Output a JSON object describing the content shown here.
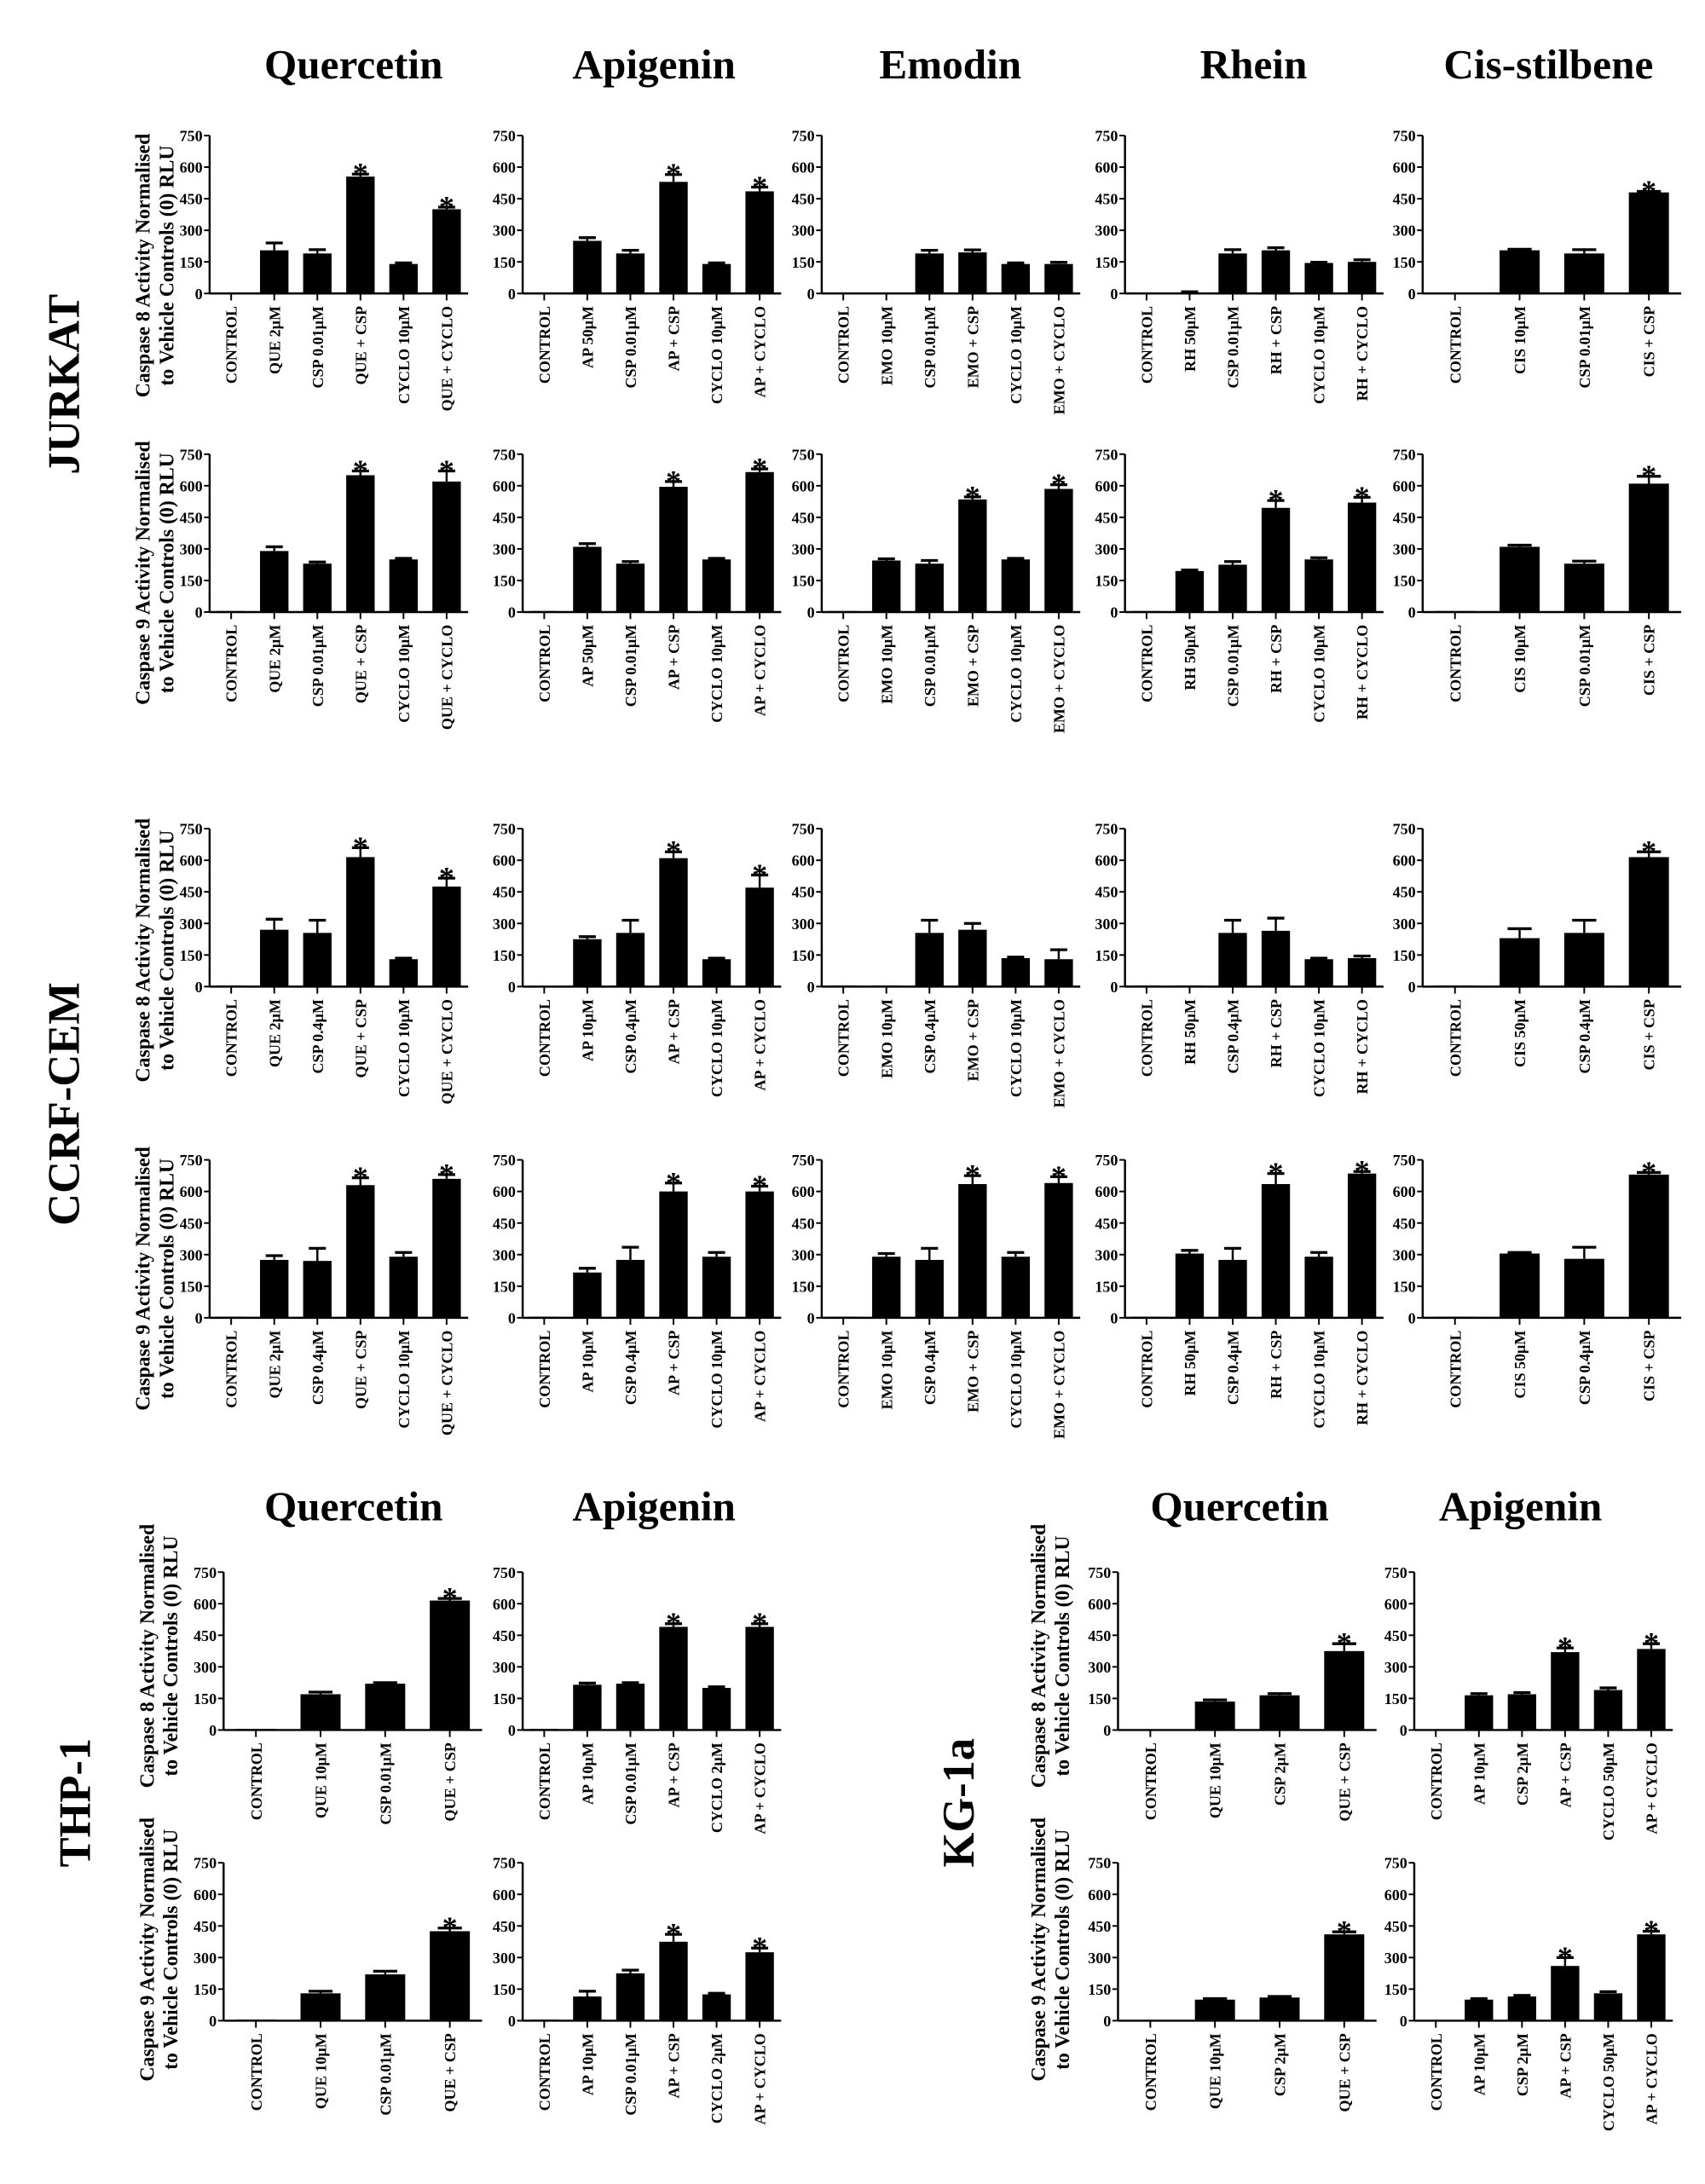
{
  "column_titles": {
    "jurkat_ccrf": [
      "Quercetin",
      "Apigenin",
      "Emodin",
      "Rhein",
      "Cis-stilbene"
    ],
    "thp1": [
      "Quercetin",
      "Apigenin"
    ],
    "kg1a": [
      "Quercetin",
      "Apigenin"
    ]
  },
  "row_labels": {
    "jurkat": "JURKAT",
    "ccrf": "CCRF-CEM",
    "thp1": "THP-1",
    "kg1a": "KG-1a"
  },
  "y_titles": {
    "c8": [
      "Caspase 8 Activity Normalised",
      "to Vehicle Controls (0) RLU"
    ],
    "c9": [
      "Caspase 9 Activity Normalised",
      "to Vehicle Controls (0) RLU"
    ]
  },
  "significance_marker": "*",
  "chart_data": {
    "type": "bar",
    "ylim": [
      0,
      750
    ],
    "yticks": [
      0,
      150,
      300,
      450,
      600,
      750
    ],
    "grid": false,
    "bar_color": "#000000",
    "panels": [
      {
        "cell": "JURKAT",
        "caspase": 8,
        "compound": "Quercetin",
        "categories": [
          "CONTROL",
          "QUE 2µM",
          "CSP 0.01µM",
          "QUE + CSP",
          "CYCLO 10µM",
          "QUE + CYCLO"
        ],
        "values": [
          0,
          205,
          190,
          555,
          140,
          400
        ],
        "errors": [
          0,
          35,
          18,
          12,
          5,
          10
        ],
        "significant": [
          3,
          5
        ]
      },
      {
        "cell": "JURKAT",
        "caspase": 8,
        "compound": "Apigenin",
        "categories": [
          "CONTROL",
          "AP 50µM",
          "CSP 0.01µM",
          "AP + CSP",
          "CYCLO 10µM",
          "AP + CYCLO"
        ],
        "values": [
          0,
          250,
          190,
          530,
          140,
          485
        ],
        "errors": [
          0,
          15,
          15,
          35,
          5,
          20
        ],
        "significant": [
          3,
          5
        ]
      },
      {
        "cell": "JURKAT",
        "caspase": 8,
        "compound": "Emodin",
        "categories": [
          "CONTROL",
          "EMO 10µM",
          "CSP 0.01µM",
          "EMO + CSP",
          "CYCLO 10µM",
          "EMO + CYCLO"
        ],
        "values": [
          0,
          0,
          190,
          195,
          140,
          140
        ],
        "errors": [
          0,
          0,
          15,
          12,
          5,
          8
        ],
        "significant": []
      },
      {
        "cell": "JURKAT",
        "caspase": 8,
        "compound": "Rhein",
        "categories": [
          "CONTROL",
          "RH 50µM",
          "CSP 0.01µM",
          "RH + CSP",
          "CYCLO 10µM",
          "RH + CYCLO"
        ],
        "values": [
          0,
          5,
          190,
          205,
          145,
          150
        ],
        "errors": [
          0,
          3,
          18,
          12,
          3,
          10
        ],
        "significant": []
      },
      {
        "cell": "JURKAT",
        "caspase": 8,
        "compound": "Cis-stilbene",
        "categories": [
          "CONTROL",
          "CIS 10µM",
          "CSP 0.01µM",
          "CIS + CSP"
        ],
        "values": [
          0,
          205,
          190,
          480
        ],
        "errors": [
          0,
          5,
          18,
          5
        ],
        "significant": [
          3
        ]
      },
      {
        "cell": "JURKAT",
        "caspase": 9,
        "compound": "Quercetin",
        "categories": [
          "CONTROL",
          "QUE 2µM",
          "CSP 0.01µM",
          "QUE + CSP",
          "CYCLO 10µM",
          "QUE + CYCLO"
        ],
        "values": [
          5,
          290,
          230,
          650,
          250,
          620
        ],
        "errors": [
          0,
          20,
          8,
          20,
          5,
          50
        ],
        "significant": [
          3,
          5
        ]
      },
      {
        "cell": "JURKAT",
        "caspase": 9,
        "compound": "Apigenin",
        "categories": [
          "CONTROL",
          "AP 50µM",
          "CSP 0.01µM",
          "AP + CSP",
          "CYCLO 10µM",
          "AP + CYCLO"
        ],
        "values": [
          5,
          310,
          230,
          595,
          250,
          665
        ],
        "errors": [
          0,
          15,
          10,
          25,
          5,
          15
        ],
        "significant": [
          3,
          5
        ]
      },
      {
        "cell": "JURKAT",
        "caspase": 9,
        "compound": "Emodin",
        "categories": [
          "CONTROL",
          "EMO 10µM",
          "CSP 0.01µM",
          "EMO + CSP",
          "CYCLO 10µM",
          "EMO + CYCLO"
        ],
        "values": [
          5,
          245,
          230,
          535,
          250,
          585
        ],
        "errors": [
          0,
          8,
          15,
          12,
          5,
          20
        ],
        "significant": [
          3,
          5
        ]
      },
      {
        "cell": "JURKAT",
        "caspase": 9,
        "compound": "Rhein",
        "categories": [
          "CONTROL",
          "RH 50µM",
          "CSP 0.01µM",
          "RH + CSP",
          "CYCLO 10µM",
          "RH + CYCLO"
        ],
        "values": [
          5,
          195,
          225,
          495,
          250,
          520
        ],
        "errors": [
          0,
          5,
          15,
          35,
          8,
          25
        ],
        "significant": [
          3,
          5
        ]
      },
      {
        "cell": "JURKAT",
        "caspase": 9,
        "compound": "Cis-stilbene",
        "categories": [
          "CONTROL",
          "CIS 10µM",
          "CSP 0.01µM",
          "CIS + CSP"
        ],
        "values": [
          5,
          310,
          230,
          610
        ],
        "errors": [
          0,
          8,
          12,
          35
        ],
        "significant": [
          3
        ]
      },
      {
        "cell": "CCRF-CEM",
        "caspase": 8,
        "compound": "Quercetin",
        "categories": [
          "CONTROL",
          "QUE 2µM",
          "CSP 0.4µM",
          "QUE + CSP",
          "CYCLO 10µM",
          "QUE + CYCLO"
        ],
        "values": [
          5,
          270,
          255,
          615,
          130,
          475
        ],
        "errors": [
          0,
          50,
          60,
          45,
          5,
          40
        ],
        "significant": [
          3,
          5
        ]
      },
      {
        "cell": "CCRF-CEM",
        "caspase": 8,
        "compound": "Apigenin",
        "categories": [
          "CONTROL",
          "AP 10µM",
          "CSP 0.4µM",
          "AP + CSP",
          "CYCLO 10µM",
          "AP + CYCLO"
        ],
        "values": [
          0,
          225,
          255,
          610,
          130,
          470
        ],
        "errors": [
          0,
          12,
          60,
          30,
          5,
          60
        ],
        "significant": [
          3,
          5
        ]
      },
      {
        "cell": "CCRF-CEM",
        "caspase": 8,
        "compound": "Emodin",
        "categories": [
          "CONTROL",
          "EMO 10µM",
          "CSP 0.4µM",
          "EMO + CSP",
          "CYCLO 10µM",
          "EMO + CYCLO"
        ],
        "values": [
          5,
          5,
          255,
          270,
          135,
          130
        ],
        "errors": [
          0,
          0,
          60,
          30,
          5,
          45
        ],
        "significant": []
      },
      {
        "cell": "CCRF-CEM",
        "caspase": 8,
        "compound": "Rhein",
        "categories": [
          "CONTROL",
          "RH 50µM",
          "CSP 0.4µM",
          "RH + CSP",
          "CYCLO 10µM",
          "RH + CYCLO"
        ],
        "values": [
          5,
          5,
          255,
          265,
          130,
          135
        ],
        "errors": [
          0,
          0,
          60,
          60,
          5,
          10
        ],
        "significant": []
      },
      {
        "cell": "CCRF-CEM",
        "caspase": 8,
        "compound": "Cis-stilbene",
        "categories": [
          "CONTROL",
          "CIS 50µM",
          "CSP 0.4µM",
          "CIS + CSP"
        ],
        "values": [
          5,
          230,
          255,
          615
        ],
        "errors": [
          0,
          45,
          60,
          25
        ],
        "significant": [
          3
        ]
      },
      {
        "cell": "CCRF-CEM",
        "caspase": 9,
        "compound": "Quercetin",
        "categories": [
          "CONTROL",
          "QUE 2µM",
          "CSP 0.4µM",
          "QUE + CSP",
          "CYCLO 10µM",
          "QUE + CYCLO"
        ],
        "values": [
          5,
          275,
          270,
          630,
          290,
          660
        ],
        "errors": [
          0,
          20,
          60,
          35,
          20,
          20
        ],
        "significant": [
          3,
          5
        ]
      },
      {
        "cell": "CCRF-CEM",
        "caspase": 9,
        "compound": "Apigenin",
        "categories": [
          "CONTROL",
          "AP 10µM",
          "CSP 0.4µM",
          "AP + CSP",
          "CYCLO 10µM",
          "AP + CYCLO"
        ],
        "values": [
          5,
          215,
          275,
          600,
          290,
          600
        ],
        "errors": [
          0,
          20,
          60,
          40,
          20,
          25
        ],
        "significant": [
          3,
          5
        ]
      },
      {
        "cell": "CCRF-CEM",
        "caspase": 9,
        "compound": "Emodin",
        "categories": [
          "CONTROL",
          "EMO 10µM",
          "CSP 0.4µM",
          "EMO + CSP",
          "CYCLO 10µM",
          "EMO + CYCLO"
        ],
        "values": [
          5,
          290,
          275,
          635,
          290,
          640
        ],
        "errors": [
          0,
          15,
          55,
          40,
          20,
          30
        ],
        "significant": [
          3,
          5
        ]
      },
      {
        "cell": "CCRF-CEM",
        "caspase": 9,
        "compound": "Rhein",
        "categories": [
          "CONTROL",
          "RH 50µM",
          "CSP 0.4µM",
          "RH + CSP",
          "CYCLO 10µM",
          "RH + CYCLO"
        ],
        "values": [
          5,
          305,
          275,
          635,
          290,
          685
        ],
        "errors": [
          0,
          15,
          55,
          50,
          20,
          10
        ],
        "significant": [
          3,
          5
        ]
      },
      {
        "cell": "CCRF-CEM",
        "caspase": 9,
        "compound": "Cis-stilbene",
        "categories": [
          "CONTROL",
          "CIS 50µM",
          "CSP 0.4µM",
          "CIS + CSP"
        ],
        "values": [
          5,
          305,
          280,
          680
        ],
        "errors": [
          0,
          5,
          55,
          10
        ],
        "significant": [
          3
        ]
      },
      {
        "cell": "THP-1",
        "caspase": 8,
        "compound": "Quercetin",
        "categories": [
          "CONTROL",
          "QUE 10µM",
          "CSP 0.01µM",
          "QUE + CSP"
        ],
        "values": [
          5,
          170,
          220,
          615
        ],
        "errors": [
          0,
          10,
          5,
          10
        ],
        "significant": [
          3
        ]
      },
      {
        "cell": "THP-1",
        "caspase": 8,
        "compound": "Apigenin",
        "categories": [
          "CONTROL",
          "AP 10µM",
          "CSP 0.01µM",
          "AP + CSP",
          "CYCLO 2µM",
          "AP + CYCLO"
        ],
        "values": [
          5,
          215,
          220,
          490,
          200,
          490
        ],
        "errors": [
          0,
          8,
          5,
          15,
          5,
          15
        ],
        "significant": [
          3,
          5
        ]
      },
      {
        "cell": "THP-1",
        "caspase": 9,
        "compound": "Quercetin",
        "categories": [
          "CONTROL",
          "QUE 10µM",
          "CSP 0.01µM",
          "QUE + CSP"
        ],
        "values": [
          5,
          130,
          220,
          425
        ],
        "errors": [
          0,
          10,
          15,
          15
        ],
        "significant": [
          3
        ]
      },
      {
        "cell": "THP-1",
        "caspase": 9,
        "compound": "Apigenin",
        "categories": [
          "CONTROL",
          "AP 10µM",
          "CSP 0.01µM",
          "AP + CSP",
          "CYCLO 2µM",
          "AP + CYCLO"
        ],
        "values": [
          5,
          115,
          225,
          375,
          125,
          325
        ],
        "errors": [
          0,
          25,
          15,
          35,
          5,
          20
        ],
        "significant": [
          3,
          5
        ]
      },
      {
        "cell": "KG-1a",
        "caspase": 8,
        "compound": "Quercetin",
        "categories": [
          "CONTROL",
          "QUE 10µM",
          "CSP 2µM",
          "QUE + CSP"
        ],
        "values": [
          0,
          135,
          165,
          375
        ],
        "errors": [
          0,
          8,
          8,
          35
        ],
        "significant": [
          3
        ]
      },
      {
        "cell": "KG-1a",
        "caspase": 8,
        "compound": "Apigenin",
        "categories": [
          "CONTROL",
          "AP 10µM",
          "CSP 2µM",
          "AP + CSP",
          "CYCLO 50µM",
          "AP + CYCLO"
        ],
        "values": [
          0,
          165,
          170,
          370,
          190,
          385
        ],
        "errors": [
          0,
          8,
          8,
          20,
          10,
          25
        ],
        "significant": [
          3,
          5
        ]
      },
      {
        "cell": "KG-1a",
        "caspase": 9,
        "compound": "Quercetin",
        "categories": [
          "CONTROL",
          "QUE 10µM",
          "CSP 2µM",
          "QUE + CSP"
        ],
        "values": [
          0,
          100,
          110,
          410
        ],
        "errors": [
          0,
          5,
          5,
          12
        ],
        "significant": [
          3
        ]
      },
      {
        "cell": "KG-1a",
        "caspase": 9,
        "compound": "Apigenin",
        "categories": [
          "CONTROL",
          "AP 10µM",
          "CSP 2µM",
          "AP + CSP",
          "CYCLO 50µM",
          "AP + CYCLO"
        ],
        "values": [
          0,
          100,
          115,
          260,
          130,
          410
        ],
        "errors": [
          0,
          5,
          5,
          40,
          8,
          15
        ],
        "significant": [
          3,
          5
        ]
      }
    ]
  }
}
